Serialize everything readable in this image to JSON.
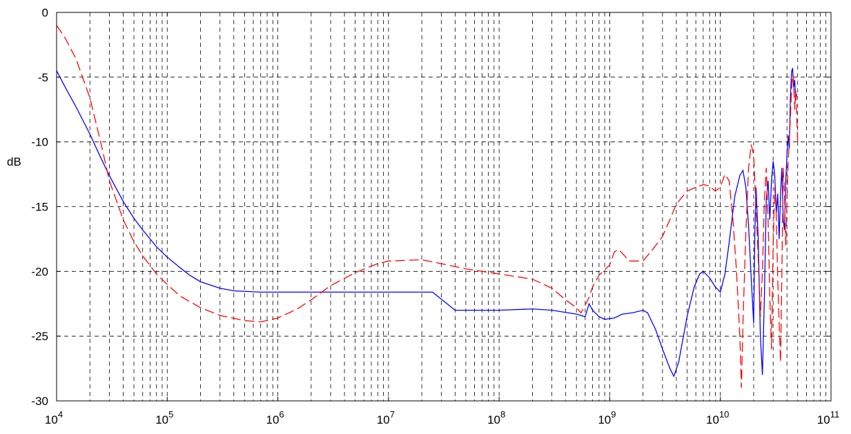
{
  "chart_data": {
    "type": "line",
    "xscale": "log",
    "xlim": [
      10000,
      100000000000
    ],
    "ylim": [
      -30,
      0
    ],
    "ylabel": "dB",
    "xlabel": "",
    "title": "",
    "grid": true,
    "x_ticks": [
      {
        "base": "10",
        "exp": "4"
      },
      {
        "base": "10",
        "exp": "5"
      },
      {
        "base": "10",
        "exp": "6"
      },
      {
        "base": "10",
        "exp": "7"
      },
      {
        "base": "10",
        "exp": "8"
      },
      {
        "base": "10",
        "exp": "9"
      },
      {
        "base": "10",
        "exp": "10"
      },
      {
        "base": "10",
        "exp": "11"
      }
    ],
    "y_ticks": [
      "0",
      "-5",
      "-10",
      "-15",
      "-20",
      "-25",
      "-30"
    ],
    "series": [
      {
        "color": "#0000ff",
        "dash": "solid",
        "points": [
          [
            10000,
            -4.5
          ],
          [
            12000,
            -5.8
          ],
          [
            15000,
            -7.3
          ],
          [
            20000,
            -9.4
          ],
          [
            25000,
            -11.2
          ],
          [
            30000,
            -12.6
          ],
          [
            40000,
            -14.6
          ],
          [
            50000,
            -15.9
          ],
          [
            60000,
            -16.8
          ],
          [
            80000,
            -18.1
          ],
          [
            100000,
            -18.9
          ],
          [
            130000,
            -19.7
          ],
          [
            160000,
            -20.3
          ],
          [
            200000,
            -20.8
          ],
          [
            300000,
            -21.3
          ],
          [
            400000,
            -21.5
          ],
          [
            700000,
            -21.6
          ],
          [
            1000000,
            -21.6
          ],
          [
            5000000,
            -21.6
          ],
          [
            25000000,
            -21.6
          ],
          [
            40000000,
            -23.0
          ],
          [
            100000000,
            -23.0
          ],
          [
            200000000,
            -22.9
          ],
          [
            300000000,
            -23.0
          ],
          [
            500000000,
            -23.3
          ],
          [
            600000000,
            -23.5
          ],
          [
            650000000,
            -22.5
          ],
          [
            700000000,
            -23.0
          ],
          [
            800000000,
            -23.5
          ],
          [
            900000000,
            -23.7
          ],
          [
            1100000000,
            -23.6
          ],
          [
            1300000000,
            -23.3
          ],
          [
            1600000000,
            -23.2
          ],
          [
            2000000000,
            -23.0
          ],
          [
            2200000000,
            -23.2
          ],
          [
            2600000000,
            -24.5
          ],
          [
            3000000000,
            -26.0
          ],
          [
            3500000000,
            -27.5
          ],
          [
            3800000000,
            -28.1
          ],
          [
            4200000000,
            -27.0
          ],
          [
            5000000000,
            -23.5
          ],
          [
            5800000000,
            -21.2
          ],
          [
            6500000000,
            -20.2
          ],
          [
            7000000000,
            -20.0
          ],
          [
            8000000000,
            -20.5
          ],
          [
            9000000000,
            -21.2
          ],
          [
            10000000000,
            -21.6
          ],
          [
            11000000000,
            -20.2
          ],
          [
            12000000000,
            -17.8
          ],
          [
            13500000000,
            -14.2
          ],
          [
            15000000000,
            -12.6
          ],
          [
            16000000000,
            -12.2
          ],
          [
            17000000000,
            -13.5
          ],
          [
            18000000000,
            -16.5
          ],
          [
            19000000000,
            -20.5
          ],
          [
            20000000000,
            -24.0
          ],
          [
            20500000000,
            -17.0
          ],
          [
            21000000000,
            -13.5
          ],
          [
            22000000000,
            -17.5
          ],
          [
            23000000000,
            -25.0
          ],
          [
            24000000000,
            -28.0
          ],
          [
            25000000000,
            -22.0
          ],
          [
            26000000000,
            -14.5
          ],
          [
            27000000000,
            -13.0
          ],
          [
            28000000000,
            -16.0
          ],
          [
            29000000000,
            -13.0
          ],
          [
            30000000000,
            -11.5
          ],
          [
            31000000000,
            -12.5
          ],
          [
            32000000000,
            -15.5
          ],
          [
            33000000000,
            -14.0
          ],
          [
            34000000000,
            -17.5
          ],
          [
            35000000000,
            -14.0
          ],
          [
            36000000000,
            -12.0
          ],
          [
            37000000000,
            -16.0
          ],
          [
            38000000000,
            -16.8
          ],
          [
            39000000000,
            -13.0
          ],
          [
            40000000000,
            -11.0
          ],
          [
            41000000000,
            -9.5
          ],
          [
            42000000000,
            -10.5
          ],
          [
            43000000000,
            -6.5
          ],
          [
            44000000000,
            -4.6
          ],
          [
            45000000000,
            -4.3
          ],
          [
            46000000000,
            -5.8
          ],
          [
            47000000000,
            -5.2
          ],
          [
            48000000000,
            -6.8
          ],
          [
            49000000000,
            -6.3
          ]
        ]
      },
      {
        "color": "#ff0000",
        "dash": "dashed",
        "points": [
          [
            10000,
            -1.0
          ],
          [
            12000,
            -2.0
          ],
          [
            15000,
            -3.6
          ],
          [
            20000,
            -6.6
          ],
          [
            25000,
            -10.0
          ],
          [
            30000,
            -13.0
          ],
          [
            40000,
            -16.0
          ],
          [
            50000,
            -17.7
          ],
          [
            60000,
            -18.8
          ],
          [
            80000,
            -20.2
          ],
          [
            100000,
            -21.0
          ],
          [
            130000,
            -21.9
          ],
          [
            200000,
            -22.8
          ],
          [
            300000,
            -23.4
          ],
          [
            500000,
            -23.8
          ],
          [
            700000,
            -23.9
          ],
          [
            1000000,
            -23.6
          ],
          [
            1500000,
            -22.9
          ],
          [
            2000000,
            -22.2
          ],
          [
            3000000,
            -21.1
          ],
          [
            5000000,
            -20.1
          ],
          [
            8000000,
            -19.4
          ],
          [
            10000000,
            -19.2
          ],
          [
            20000000,
            -19.1
          ],
          [
            30000000,
            -19.4
          ],
          [
            50000000,
            -19.8
          ],
          [
            100000000,
            -20.2
          ],
          [
            200000000,
            -20.6
          ],
          [
            300000000,
            -21.3
          ],
          [
            400000000,
            -22.2
          ],
          [
            500000000,
            -22.8
          ],
          [
            550000000,
            -23.2
          ],
          [
            600000000,
            -22.6
          ],
          [
            650000000,
            -22.0
          ],
          [
            700000000,
            -21.2
          ],
          [
            800000000,
            -20.3
          ],
          [
            1000000000,
            -19.5
          ],
          [
            1100000000,
            -18.5
          ],
          [
            1200000000,
            -18.3
          ],
          [
            1300000000,
            -18.6
          ],
          [
            1500000000,
            -19.2
          ],
          [
            2000000000,
            -19.2
          ],
          [
            2500000000,
            -18.2
          ],
          [
            3000000000,
            -17.3
          ],
          [
            3500000000,
            -16.0
          ],
          [
            4000000000,
            -14.8
          ],
          [
            5000000000,
            -13.8
          ],
          [
            6000000000,
            -13.5
          ],
          [
            7000000000,
            -13.3
          ],
          [
            8000000000,
            -13.4
          ],
          [
            9000000000,
            -13.8
          ],
          [
            10000000000,
            -13.5
          ],
          [
            11000000000,
            -12.5
          ],
          [
            12000000000,
            -13.0
          ],
          [
            13000000000,
            -16.0
          ],
          [
            14000000000,
            -20.0
          ],
          [
            15000000000,
            -25.0
          ],
          [
            15500000000,
            -29.0
          ],
          [
            16000000000,
            -24.0
          ],
          [
            17000000000,
            -17.0
          ],
          [
            18000000000,
            -12.0
          ],
          [
            19000000000,
            -10.2
          ],
          [
            20000000000,
            -11.0
          ],
          [
            21000000000,
            -15.0
          ],
          [
            22000000000,
            -19.0
          ],
          [
            23000000000,
            -23.5
          ],
          [
            24000000000,
            -20.0
          ],
          [
            25000000000,
            -14.5
          ],
          [
            26000000000,
            -12.0
          ],
          [
            27000000000,
            -16.0
          ],
          [
            28000000000,
            -22.0
          ],
          [
            29000000000,
            -26.0
          ],
          [
            30000000000,
            -18.0
          ],
          [
            31000000000,
            -13.5
          ],
          [
            32000000000,
            -15.5
          ],
          [
            33000000000,
            -20.5
          ],
          [
            34000000000,
            -24.0
          ],
          [
            35000000000,
            -27.0
          ],
          [
            36000000000,
            -20.0
          ],
          [
            37000000000,
            -12.0
          ],
          [
            38000000000,
            -14.0
          ],
          [
            39000000000,
            -18.0
          ],
          [
            40000000000,
            -14.5
          ],
          [
            41000000000,
            -11.5
          ],
          [
            42000000000,
            -10.0
          ],
          [
            43000000000,
            -8.0
          ],
          [
            44000000000,
            -6.0
          ],
          [
            45000000000,
            -4.8
          ],
          [
            46000000000,
            -5.5
          ],
          [
            47000000000,
            -7.5
          ],
          [
            48000000000,
            -6.0
          ],
          [
            49000000000,
            -8.0
          ],
          [
            50000000000,
            -10.0
          ]
        ]
      }
    ]
  }
}
